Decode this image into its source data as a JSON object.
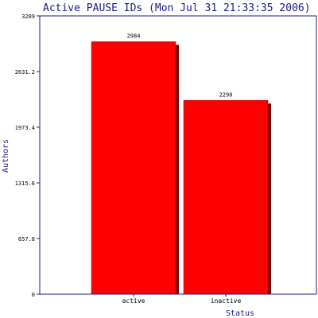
{
  "chart_data": {
    "type": "bar",
    "title": "Active PAUSE IDs (Mon Jul 31 21:33:35 2006)",
    "xlabel": "Status",
    "ylabel": "Authors",
    "categories": [
      "active",
      "inactive"
    ],
    "values": [
      2984,
      2290
    ],
    "ylim": [
      0,
      3289
    ],
    "yticks": [
      "0",
      "657.8",
      "1315.6",
      "1973.4",
      "2631.2",
      "3289"
    ],
    "grid": false,
    "legend": "none"
  },
  "colors": {
    "bar": "#ff0000",
    "bar_shadow": "#7a0000",
    "axis": "#1a1a8c",
    "text": "#1a1a8c"
  }
}
